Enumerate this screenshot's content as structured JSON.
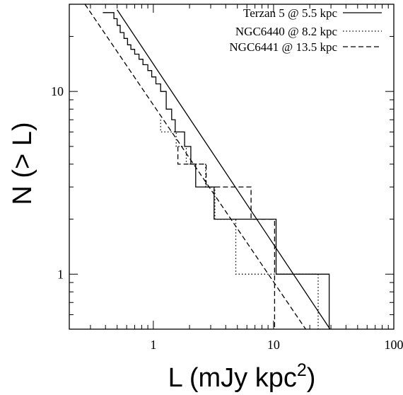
{
  "chart_data": {
    "type": "line",
    "xlabel": "L (mJy kpc",
    "xlabel_sup": "2",
    "xlabel_close": ")",
    "ylabel": "N (> L)",
    "xscale": "log",
    "yscale": "log",
    "xlim": [
      0.2,
      100
    ],
    "ylim": [
      0.5,
      30
    ],
    "x_ticks": [
      {
        "value": 1,
        "label": "1"
      },
      {
        "value": 10,
        "label": "10"
      },
      {
        "value": 100,
        "label": "100"
      }
    ],
    "y_ticks": [
      {
        "value": 1,
        "label": "1"
      },
      {
        "value": 10,
        "label": "10"
      }
    ],
    "grid": false,
    "legend_position": "top-right",
    "series": [
      {
        "name": "Terzan 5 @ 5.5 kpc",
        "style": "solid",
        "steps": [
          [
            0.38,
            27
          ],
          [
            0.47,
            27
          ],
          [
            0.47,
            25
          ],
          [
            0.5,
            25
          ],
          [
            0.5,
            23
          ],
          [
            0.53,
            23
          ],
          [
            0.53,
            21
          ],
          [
            0.57,
            21
          ],
          [
            0.57,
            19.5
          ],
          [
            0.61,
            19.5
          ],
          [
            0.61,
            18
          ],
          [
            0.65,
            18
          ],
          [
            0.65,
            17
          ],
          [
            0.7,
            17
          ],
          [
            0.7,
            16
          ],
          [
            0.76,
            16
          ],
          [
            0.76,
            15
          ],
          [
            0.82,
            15
          ],
          [
            0.82,
            14
          ],
          [
            0.9,
            14
          ],
          [
            0.9,
            13
          ],
          [
            0.97,
            13
          ],
          [
            0.97,
            12
          ],
          [
            1.05,
            12
          ],
          [
            1.05,
            11
          ],
          [
            1.15,
            11
          ],
          [
            1.15,
            10
          ],
          [
            1.28,
            10
          ],
          [
            1.28,
            8
          ],
          [
            1.42,
            8
          ],
          [
            1.42,
            7
          ],
          [
            1.52,
            7
          ],
          [
            1.52,
            6
          ],
          [
            1.82,
            6
          ],
          [
            1.82,
            5
          ],
          [
            2.05,
            5
          ],
          [
            2.05,
            4
          ],
          [
            2.25,
            4
          ],
          [
            2.25,
            3
          ],
          [
            3.2,
            3
          ],
          [
            3.2,
            2
          ],
          [
            10.5,
            2
          ],
          [
            10.5,
            1
          ],
          [
            29,
            1
          ],
          [
            29,
            0.5
          ]
        ],
        "fit": [
          [
            0.5,
            28
          ],
          [
            29.5,
            0.5
          ]
        ]
      },
      {
        "name": "NGC6440 @ 8.2 kpc",
        "style": "dotted",
        "steps": [
          [
            1.15,
            7
          ],
          [
            1.15,
            6
          ],
          [
            1.55,
            6
          ],
          [
            1.55,
            5
          ],
          [
            1.88,
            5
          ],
          [
            1.88,
            4
          ],
          [
            2.72,
            4
          ],
          [
            2.72,
            3
          ],
          [
            3.25,
            3
          ],
          [
            3.25,
            2
          ],
          [
            4.85,
            2
          ],
          [
            4.85,
            1
          ],
          [
            23.5,
            1
          ],
          [
            23.5,
            0.5
          ]
        ],
        "fit": null
      },
      {
        "name": "NGC6441 @ 13.5 kpc",
        "style": "dashed",
        "steps": [
          [
            1.6,
            5
          ],
          [
            1.6,
            4
          ],
          [
            2.75,
            4
          ],
          [
            2.75,
            3
          ],
          [
            6.5,
            3
          ],
          [
            6.5,
            2
          ],
          [
            10.2,
            2
          ],
          [
            10.2,
            1
          ],
          [
            10.2,
            0.5
          ]
        ],
        "fit": [
          [
            0.27,
            30
          ],
          [
            18.5,
            0.5
          ]
        ]
      }
    ]
  }
}
